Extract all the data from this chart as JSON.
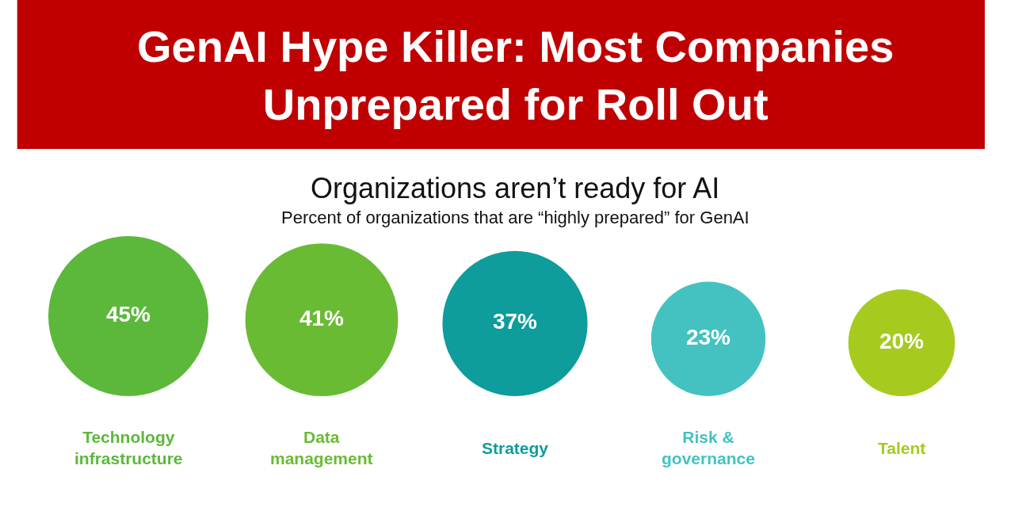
{
  "chart_data": {
    "type": "other",
    "title": "GenAI Hype Killer: Most Companies Unprepared for Roll Out",
    "subtitle": "Organizations aren’t ready for AI",
    "annotations": [
      "Percent of organizations that are “highly prepared” for GenAI"
    ],
    "categories": [
      "Technology infrastructure",
      "Data management",
      "Strategy",
      "Risk & governance",
      "Talent"
    ],
    "values": [
      45,
      41,
      37,
      23,
      20
    ],
    "value_labels": [
      "45%",
      "41%",
      "37%",
      "23%",
      "20%"
    ],
    "colors": [
      "#5cb83a",
      "#6abb34",
      "#0e9c9c",
      "#44c2c2",
      "#a6cb1e"
    ],
    "legend": false
  }
}
